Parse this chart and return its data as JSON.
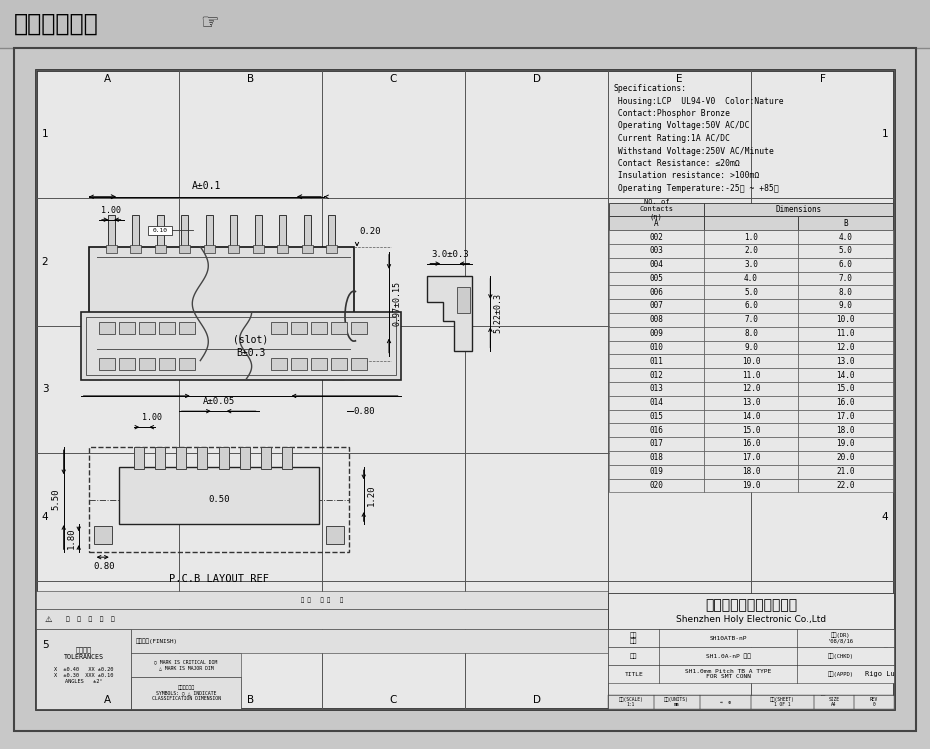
{
  "bg_color": "#c8c8c8",
  "title_bar_color": "#b8b8b8",
  "drawing_bg": "#e4e4e4",
  "inner_bg": "#e8e8e8",
  "title_text": "在线图纸下载",
  "specs": [
    "Specifications:",
    " Housing:LCP  UL94-V0  Color:Nature",
    " Contact:Phosphor Bronze",
    " Operating Voltage:50V AC/DC",
    " Current Rating:1A AC/DC",
    " Withstand Voltage:250V AC/Minute",
    " Contact Resistance: ≤20mΩ",
    " Insulation resistance: >100mΩ",
    " Operating Temperature:-25℃ ~ +85℃"
  ],
  "table_contacts": [
    "002",
    "003",
    "004",
    "005",
    "006",
    "007",
    "008",
    "009",
    "010",
    "011",
    "012",
    "013",
    "014",
    "015",
    "016",
    "017",
    "018",
    "019",
    "020"
  ],
  "table_A": [
    "1.0",
    "2.0",
    "3.0",
    "4.0",
    "5.0",
    "6.0",
    "7.0",
    "8.0",
    "9.0",
    "10.0",
    "11.0",
    "12.0",
    "13.0",
    "14.0",
    "15.0",
    "16.0",
    "17.0",
    "18.0",
    "19.0"
  ],
  "table_B": [
    "4.0",
    "5.0",
    "6.0",
    "7.0",
    "8.0",
    "9.0",
    "10.0",
    "11.0",
    "12.0",
    "13.0",
    "14.0",
    "15.0",
    "16.0",
    "17.0",
    "18.0",
    "19.0",
    "20.0",
    "21.0",
    "22.0"
  ],
  "company_cn": "深圳市宏利电子有限公司",
  "company_en": "Shenzhen Holy Electronic Co.,Ltd",
  "grid_rows": [
    "1",
    "2",
    "3",
    "4",
    "5"
  ],
  "grid_cols": [
    "A",
    "B",
    "C",
    "D",
    "E",
    "F"
  ]
}
